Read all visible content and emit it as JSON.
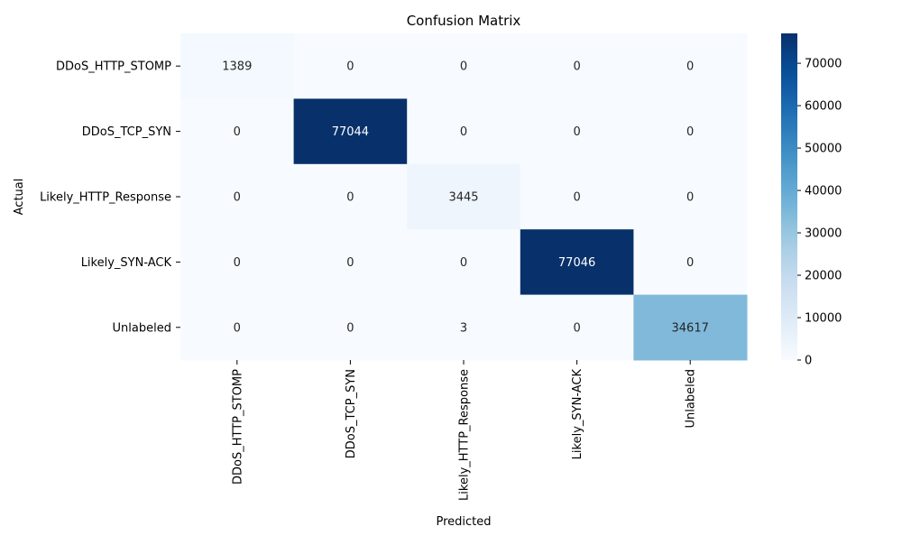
{
  "chart_data": {
    "type": "heatmap",
    "title": "Confusion Matrix",
    "xlabel": "Predicted",
    "ylabel": "Actual",
    "row_labels": [
      "DDoS_HTTP_STOMP",
      "DDoS_TCP_SYN",
      "Likely_HTTP_Response",
      "Likely_SYN-ACK",
      "Unlabeled"
    ],
    "col_labels": [
      "DDoS_HTTP_STOMP",
      "DDoS_TCP_SYN",
      "Likely_HTTP_Response",
      "Likely_SYN-ACK",
      "Unlabeled"
    ],
    "values": [
      [
        1389,
        0,
        0,
        0,
        0
      ],
      [
        0,
        77044,
        0,
        0,
        0
      ],
      [
        0,
        0,
        3445,
        0,
        0
      ],
      [
        0,
        0,
        0,
        77046,
        0
      ],
      [
        0,
        0,
        3,
        0,
        34617
      ]
    ],
    "colorbar": {
      "min": 0,
      "max": 77046,
      "ticks": [
        0,
        10000,
        20000,
        30000,
        40000,
        50000,
        60000,
        70000
      ],
      "colormap": "Blues"
    }
  }
}
